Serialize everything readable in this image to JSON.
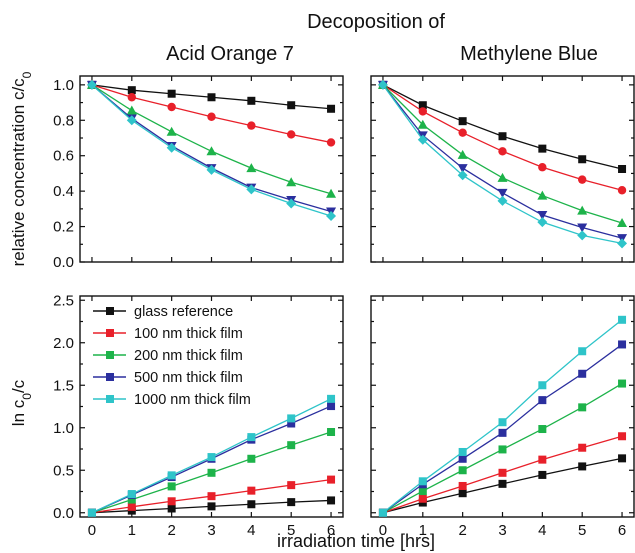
{
  "figure": {
    "title": "Decoposition of",
    "xlabel": "irradiation time [hrs]",
    "ylabel_top": "relative concentration c/c",
    "ylabel_top_sub": "0",
    "ylabel_bottom_pre": "ln c",
    "ylabel_bottom_sub": "0",
    "ylabel_bottom_post": "/c",
    "column_titles": [
      "Acid Orange 7",
      "Methylene Blue"
    ]
  },
  "legend": [
    {
      "label": "glass reference",
      "color": "#111111",
      "marker": "square"
    },
    {
      "label": "100 nm thick film",
      "color": "#e8202a",
      "marker": "circle"
    },
    {
      "label": "200 nm thick film",
      "color": "#1db34a",
      "marker": "triangle-up"
    },
    {
      "label": "500 nm thick film",
      "color": "#2b2f9e",
      "marker": "triangle-down"
    },
    {
      "label": "1000 nm thick film",
      "color": "#2ec4c9",
      "marker": "diamond"
    }
  ],
  "chart_data": [
    {
      "type": "line",
      "panel": "top-left",
      "title": "Acid Orange 7",
      "ylabel": "relative concentration c/c0",
      "x": [
        0,
        1,
        2,
        3,
        4,
        5,
        6
      ],
      "xlim": [
        -0.3,
        6.3
      ],
      "ylim": [
        0,
        1.05
      ],
      "xticks": [
        0,
        1,
        2,
        3,
        4,
        5,
        6
      ],
      "yticks": [
        "0.0",
        "0.2",
        "0.4",
        "0.6",
        "0.8",
        "1.0"
      ],
      "series": [
        {
          "name": "glass reference",
          "values": [
            1.0,
            0.97,
            0.95,
            0.93,
            0.91,
            0.885,
            0.865
          ]
        },
        {
          "name": "100 nm thick film",
          "values": [
            1.0,
            0.93,
            0.875,
            0.82,
            0.77,
            0.72,
            0.675
          ]
        },
        {
          "name": "200 nm thick film",
          "values": [
            1.0,
            0.855,
            0.735,
            0.625,
            0.53,
            0.45,
            0.385
          ]
        },
        {
          "name": "500 nm thick film",
          "values": [
            1.0,
            0.81,
            0.655,
            0.53,
            0.42,
            0.35,
            0.285
          ]
        },
        {
          "name": "1000 nm thick film",
          "values": [
            1.0,
            0.8,
            0.645,
            0.52,
            0.41,
            0.33,
            0.26
          ]
        }
      ]
    },
    {
      "type": "line",
      "panel": "top-right",
      "title": "Methylene Blue",
      "x": [
        0,
        1,
        2,
        3,
        4,
        5,
        6
      ],
      "xlim": [
        -0.3,
        6.3
      ],
      "ylim": [
        0,
        1.05
      ],
      "xticks": [
        0,
        1,
        2,
        3,
        4,
        5,
        6
      ],
      "series": [
        {
          "name": "glass reference",
          "values": [
            1.0,
            0.885,
            0.795,
            0.71,
            0.64,
            0.58,
            0.525
          ]
        },
        {
          "name": "100 nm thick film",
          "values": [
            1.0,
            0.85,
            0.73,
            0.625,
            0.535,
            0.465,
            0.405
          ]
        },
        {
          "name": "200 nm thick film",
          "values": [
            1.0,
            0.775,
            0.605,
            0.475,
            0.375,
            0.29,
            0.22
          ]
        },
        {
          "name": "500 nm thick film",
          "values": [
            1.0,
            0.715,
            0.53,
            0.39,
            0.265,
            0.195,
            0.135
          ]
        },
        {
          "name": "1000 nm thick film",
          "values": [
            1.0,
            0.69,
            0.49,
            0.345,
            0.225,
            0.15,
            0.105
          ]
        }
      ]
    },
    {
      "type": "line",
      "panel": "bottom-left",
      "ylabel": "ln c0/c",
      "xlabel": "irradiation time [hrs]",
      "x": [
        0,
        1,
        2,
        3,
        4,
        5,
        6
      ],
      "xlim": [
        -0.3,
        6.3
      ],
      "ylim": [
        -0.05,
        2.55
      ],
      "xticks": [
        0,
        1,
        2,
        3,
        4,
        5,
        6
      ],
      "yticks": [
        "0.0",
        "0.5",
        "1.0",
        "1.5",
        "2.0",
        "2.5"
      ],
      "series": [
        {
          "name": "glass reference",
          "values": [
            0.0,
            0.025,
            0.05,
            0.075,
            0.1,
            0.125,
            0.145
          ]
        },
        {
          "name": "100 nm thick film",
          "values": [
            0.0,
            0.07,
            0.135,
            0.195,
            0.26,
            0.325,
            0.39
          ]
        },
        {
          "name": "200 nm thick film",
          "values": [
            0.0,
            0.155,
            0.31,
            0.47,
            0.635,
            0.795,
            0.95
          ]
        },
        {
          "name": "500 nm thick film",
          "values": [
            0.0,
            0.21,
            0.42,
            0.635,
            0.86,
            1.05,
            1.255
          ]
        },
        {
          "name": "1000 nm thick film",
          "values": [
            0.0,
            0.22,
            0.44,
            0.655,
            0.89,
            1.11,
            1.34
          ]
        }
      ]
    },
    {
      "type": "line",
      "panel": "bottom-right",
      "x": [
        0,
        1,
        2,
        3,
        4,
        5,
        6
      ],
      "xlim": [
        -0.3,
        6.3
      ],
      "ylim": [
        -0.05,
        2.55
      ],
      "xticks": [
        0,
        1,
        2,
        3,
        4,
        5,
        6
      ],
      "series": [
        {
          "name": "glass reference",
          "values": [
            0.0,
            0.12,
            0.23,
            0.34,
            0.445,
            0.545,
            0.64
          ]
        },
        {
          "name": "100 nm thick film",
          "values": [
            0.0,
            0.165,
            0.315,
            0.47,
            0.625,
            0.765,
            0.9
          ]
        },
        {
          "name": "200 nm thick film",
          "values": [
            0.0,
            0.255,
            0.5,
            0.745,
            0.985,
            1.24,
            1.52
          ]
        },
        {
          "name": "500 nm thick film",
          "values": [
            0.0,
            0.335,
            0.635,
            0.94,
            1.325,
            1.635,
            1.98
          ]
        },
        {
          "name": "1000 nm thick film",
          "values": [
            0.0,
            0.37,
            0.715,
            1.065,
            1.5,
            1.9,
            2.27
          ]
        }
      ]
    }
  ]
}
